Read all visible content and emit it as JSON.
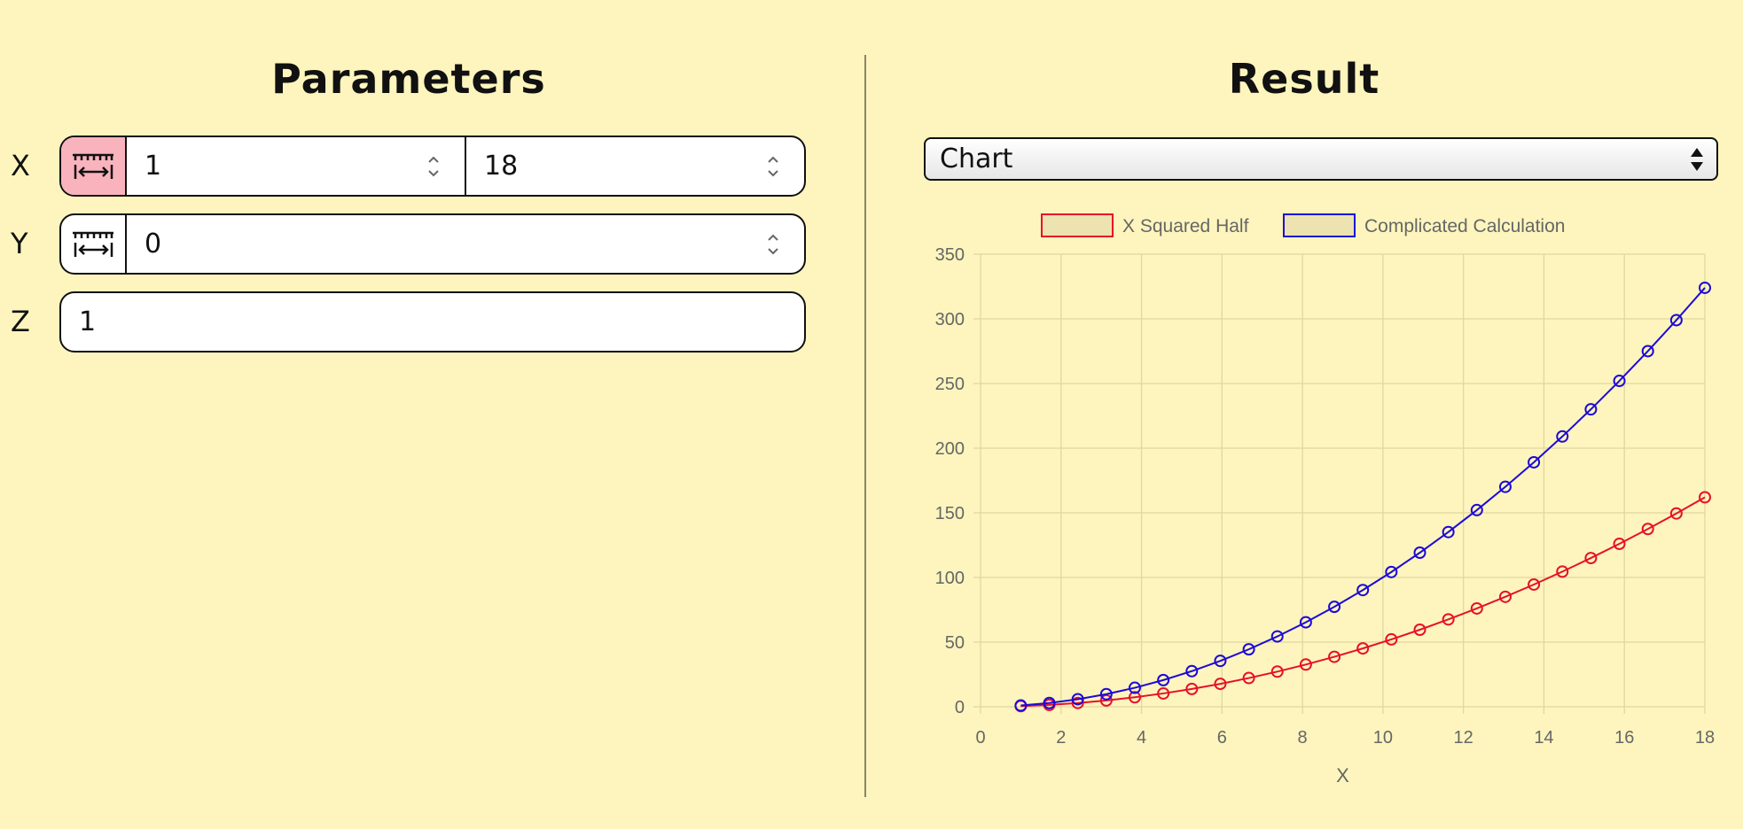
{
  "parameters": {
    "title": "Parameters",
    "x": {
      "label": "X",
      "range_mode": true,
      "from": "1",
      "to": "18"
    },
    "y": {
      "label": "Y",
      "range_mode": false,
      "value": "0"
    },
    "z": {
      "label": "Z",
      "value": "1"
    }
  },
  "result": {
    "title": "Result",
    "view_select": {
      "selected": "Chart"
    }
  },
  "colors": {
    "background": "#fdf5bd",
    "range_active": "#f9b3bd",
    "series_red": "#e8102a",
    "series_blue": "#1d0ad8",
    "legend_fill": "#ece3b0",
    "grid": "#e0d79e"
  },
  "icons": {
    "range_toggle": "range-arrows-icon",
    "spinner": "spinner-arrows-icon",
    "select_arrows": "select-arrows-icon"
  },
  "chart_data": {
    "type": "line",
    "xlabel": "X",
    "ylabel": "",
    "xlim": [
      0,
      18
    ],
    "ylim": [
      0,
      350
    ],
    "x_ticks": [
      "0",
      "2",
      "4",
      "6",
      "8",
      "10",
      "12",
      "14",
      "16",
      "18"
    ],
    "y_ticks": [
      "0",
      "50",
      "100",
      "150",
      "200",
      "250",
      "300",
      "350"
    ],
    "grid": true,
    "legend_position": "top",
    "x": [
      1,
      1.7083,
      2.4167,
      3.125,
      3.8333,
      4.5417,
      5.25,
      5.9583,
      6.6667,
      7.375,
      8.0833,
      8.7917,
      9.5,
      10.2083,
      10.9167,
      11.625,
      12.3333,
      13.0417,
      13.75,
      14.4583,
      15.1667,
      15.875,
      16.5833,
      17.2917,
      18
    ],
    "series": [
      {
        "name": "X Squared Half",
        "color": "#e8102a",
        "values": [
          0.5,
          1.46,
          2.92,
          4.88,
          7.35,
          10.31,
          13.78,
          17.75,
          22.22,
          27.2,
          32.67,
          38.65,
          45.13,
          52.1,
          59.59,
          67.57,
          76.06,
          85.04,
          94.53,
          104.52,
          115.01,
          126.01,
          137.5,
          149.5,
          162
        ]
      },
      {
        "name": "Complicated Calculation",
        "color": "#1d0ad8",
        "values": [
          1,
          2.92,
          5.84,
          9.77,
          14.69,
          20.63,
          27.56,
          35.5,
          44.44,
          54.39,
          65.35,
          77.3,
          90.25,
          104.21,
          119.17,
          135.14,
          152.11,
          170.09,
          189.06,
          209.04,
          230.03,
          252.02,
          275.01,
          299.01,
          324
        ]
      }
    ]
  }
}
